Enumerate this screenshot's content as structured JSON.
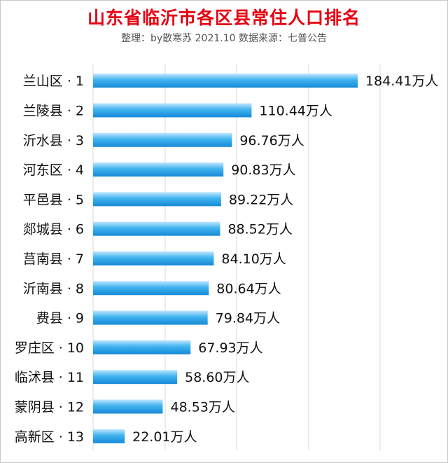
{
  "header": {
    "title": "山东省临沂市各区县常住人口排名",
    "subtitle": "整理：by散寒苏 2021.10 数据来源：七普公告"
  },
  "colors": {
    "bar_light": "#bfe6ff",
    "bar_mid": "#3fb3ef",
    "bar_dark": "#1689d6",
    "grid": "#d9d9d9",
    "title": "#e60012"
  },
  "chart_data": {
    "type": "bar",
    "orientation": "horizontal",
    "title": "山东省临沂市各区县常住人口排名",
    "subtitle": "整理：by散寒苏 2021.10 数据来源：七普公告",
    "categories": [
      "兰山区 · 1",
      "兰陵县 · 2",
      "沂水县 · 3",
      "河东区 · 4",
      "平邑县 · 5",
      "郯城县 · 6",
      "莒南县 · 7",
      "沂南县 · 8",
      "费县 · 9",
      "罗庄区 · 10",
      "临沭县 · 11",
      "蒙阴县 · 12",
      "高新区 · 13"
    ],
    "values": [
      184.41,
      110.44,
      96.76,
      90.83,
      89.22,
      88.52,
      84.1,
      80.64,
      79.84,
      67.93,
      58.6,
      48.53,
      22.01
    ],
    "data_labels": [
      "184.41万人",
      "110.44万人",
      "96.76万人",
      "90.83万人",
      "89.22万人",
      "88.52万人",
      "84.10万人",
      "80.64万人",
      "79.84万人",
      "67.93万人",
      "58.60万人",
      "48.53万人",
      "22.01万人"
    ],
    "xlim": [
      0,
      200
    ],
    "grid": true,
    "legend": "none"
  }
}
